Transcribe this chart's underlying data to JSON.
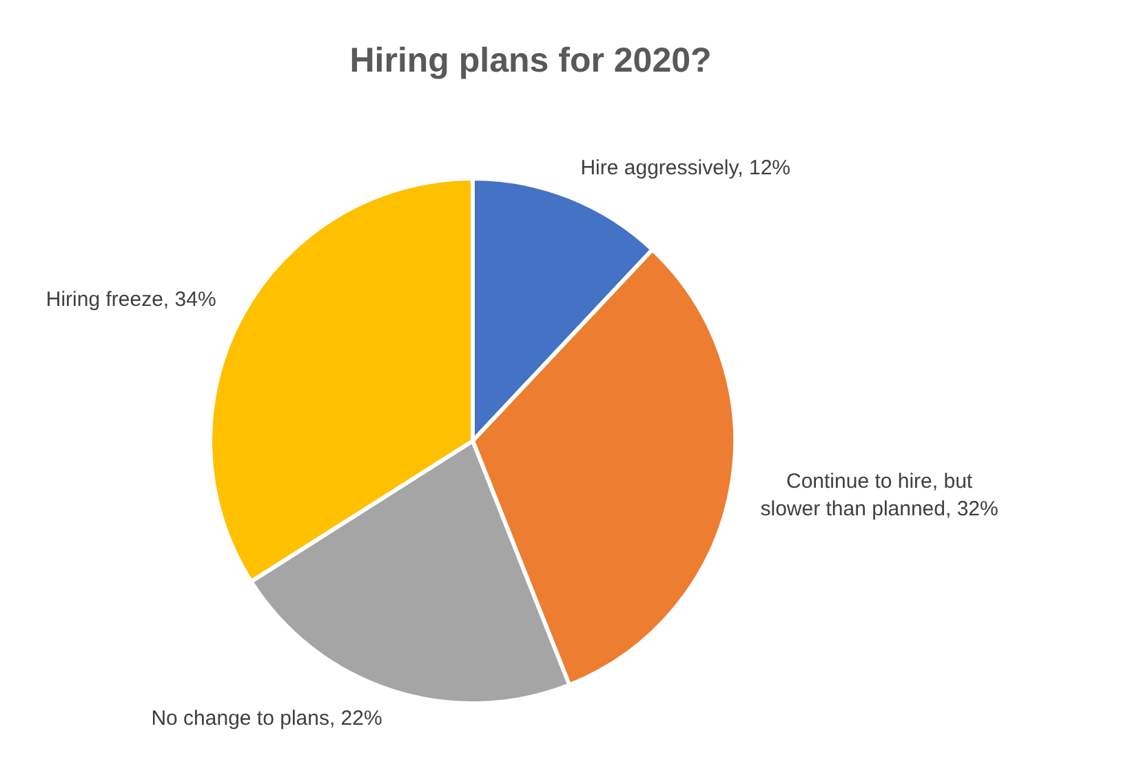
{
  "chart_data": {
    "type": "pie",
    "title": "Hiring plans for 2020?",
    "categories": [
      "Hire aggressively",
      "Continue to hire, but slower than planned",
      "No change to plans",
      "Hiring freeze"
    ],
    "values": [
      12,
      32,
      22,
      34
    ],
    "value_labels": [
      "12%",
      "32%",
      "22%",
      "34%"
    ],
    "colors": [
      "#4472c4",
      "#ed7d31",
      "#a5a5a5",
      "#ffc000"
    ],
    "legend": false
  }
}
